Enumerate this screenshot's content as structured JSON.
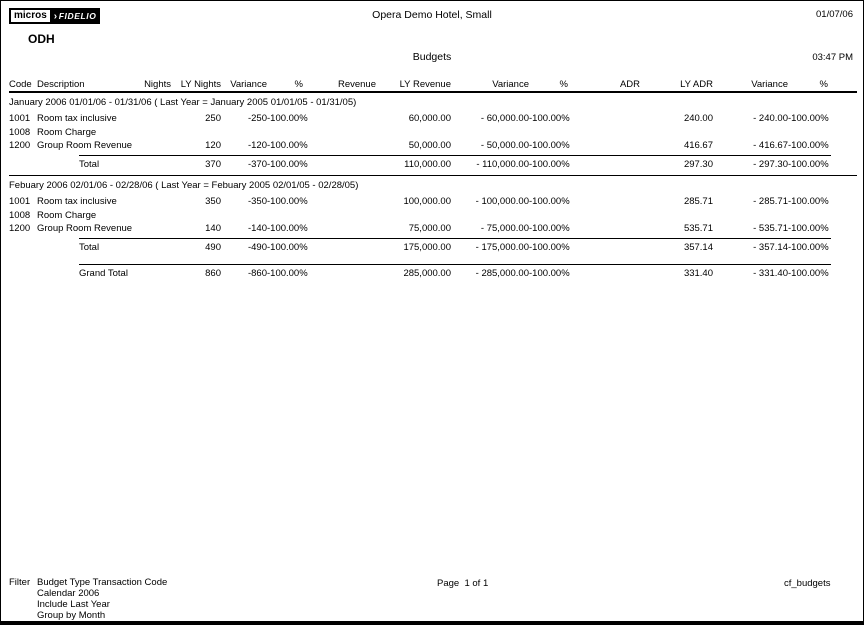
{
  "header": {
    "logo_micros": "micros",
    "logo_arrow": "›",
    "logo_fidelio": "FIDELIO",
    "property_code": "ODH",
    "hotel_name": "Opera Demo Hotel, Small",
    "date": "01/07/06",
    "report_title": "Budgets",
    "time": "03:47 PM"
  },
  "table": {
    "columns": [
      "Code",
      "Description",
      "Nights",
      "LY Nights",
      "Variance",
      "%",
      "Revenue",
      "LY Revenue",
      "Variance",
      "%",
      "ADR",
      "LY ADR",
      "Variance",
      "%"
    ],
    "column_keys": [
      "code",
      "description",
      "nights",
      "ly-nights",
      "variance-nights",
      "pct-nights",
      "revenue",
      "ly-revenue",
      "variance-revenue",
      "pct-revenue",
      "adr",
      "ly-adr",
      "variance-adr",
      "pct-adr"
    ],
    "sections": [
      {
        "title": "January 2006 01/01/06 - 01/31/06 ( Last Year = January 2005 01/01/05 - 01/31/05)",
        "rows": [
          [
            "1001",
            "Room tax inclusive",
            "",
            "250",
            "-250",
            "-100.00%",
            "",
            "60,000.00",
            "- 60,000.00",
            "-100.00%",
            "",
            "240.00",
            "- 240.00",
            "-100.00%"
          ],
          [
            "1008",
            "Room Charge",
            "",
            "",
            "",
            "",
            "",
            "",
            "",
            "",
            "",
            "",
            "",
            ""
          ],
          [
            "1200",
            "Group Room Revenue",
            "",
            "120",
            "-120",
            "-100.00%",
            "",
            "50,000.00",
            "- 50,000.00",
            "-100.00%",
            "",
            "416.67",
            "- 416.67",
            "-100.00%"
          ]
        ],
        "total": [
          "",
          "Total",
          "",
          "370",
          "-370",
          "-100.00%",
          "",
          "110,000.00",
          "- 110,000.00",
          "-100.00%",
          "",
          "297.30",
          "- 297.30",
          "-100.00%"
        ]
      },
      {
        "title": "Febuary 2006 02/01/06 - 02/28/06 ( Last Year = Febuary 2005 02/01/05 - 02/28/05)",
        "rows": [
          [
            "1001",
            "Room tax inclusive",
            "",
            "350",
            "-350",
            "-100.00%",
            "",
            "100,000.00",
            "- 100,000.00",
            "-100.00%",
            "",
            "285.71",
            "- 285.71",
            "-100.00%"
          ],
          [
            "1008",
            "Room Charge",
            "",
            "",
            "",
            "",
            "",
            "",
            "",
            "",
            "",
            "",
            "",
            ""
          ],
          [
            "1200",
            "Group Room Revenue",
            "",
            "140",
            "-140",
            "-100.00%",
            "",
            "75,000.00",
            "- 75,000.00",
            "-100.00%",
            "",
            "535.71",
            "- 535.71",
            "-100.00%"
          ]
        ],
        "total": [
          "",
          "Total",
          "",
          "490",
          "-490",
          "-100.00%",
          "",
          "175,000.00",
          "- 175,000.00",
          "-100.00%",
          "",
          "357.14",
          "- 357.14",
          "-100.00%"
        ]
      }
    ],
    "grand_total": [
      "",
      "Grand Total",
      "",
      "860",
      "-860",
      "-100.00%",
      "",
      "285,000.00",
      "- 285,000.00",
      "-100.00%",
      "",
      "331.40",
      "- 331.40",
      "-100.00%"
    ]
  },
  "footer": {
    "filter_label": "Filter",
    "filter_lines": [
      "Budget Type Transaction Code",
      "Calendar 2006",
      "Include Last Year",
      "Group by Month"
    ],
    "page_info": "Page  1 of 1",
    "report_file": "cf_budgets"
  }
}
